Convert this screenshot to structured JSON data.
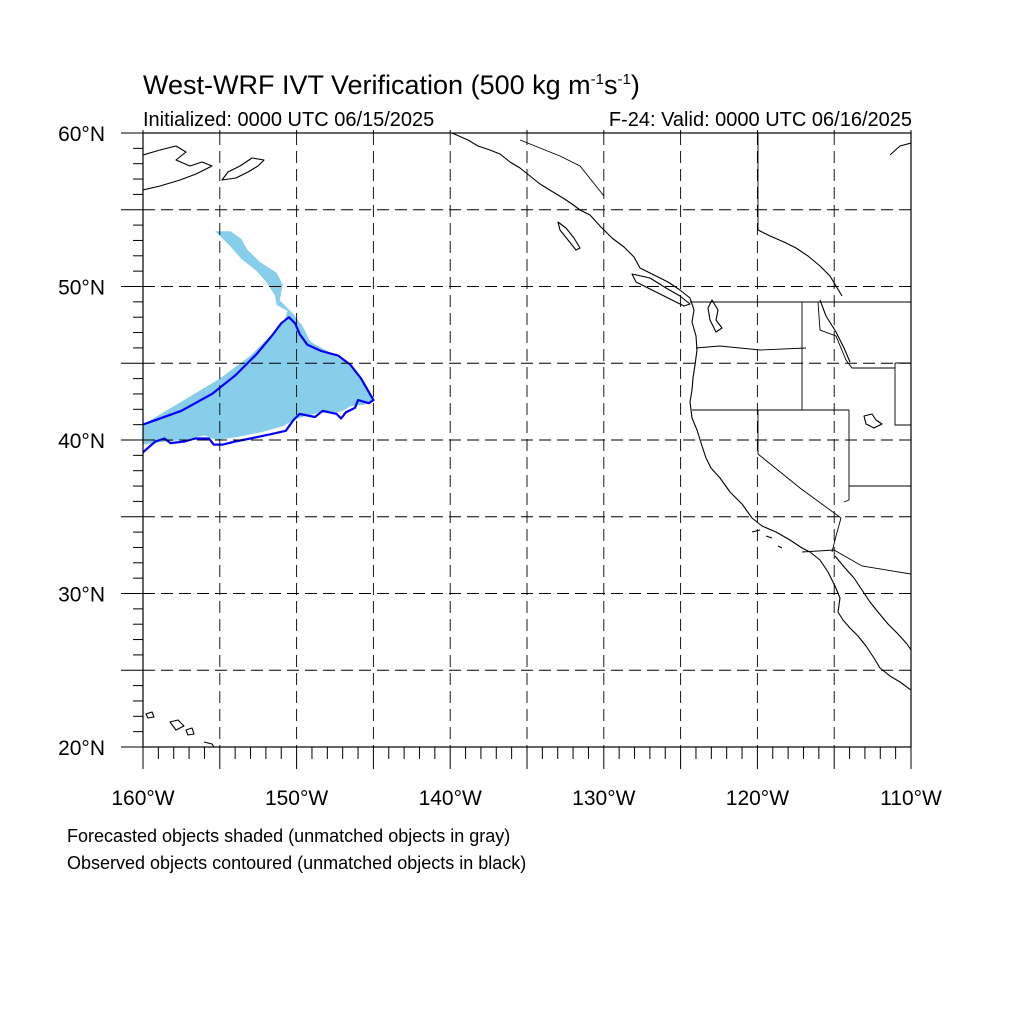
{
  "title": {
    "main": "West-WRF IVT Verification (500 kg m",
    "exp1": "-1",
    "mid": "s",
    "exp2": "-1",
    "close": ")"
  },
  "subtitle": {
    "left": "Initialized: 0000 UTC 06/15/2025",
    "right": "F-24: Valid: 0000 UTC 06/16/2025"
  },
  "map": {
    "projection": "cylindrical-equidistant",
    "lon_range": [
      -160,
      -110
    ],
    "lat_range": [
      20,
      60
    ],
    "grid": true,
    "grid_spacing_deg": 5,
    "lat_labels": [
      {
        "lat": 60,
        "text": "60°N"
      },
      {
        "lat": 50,
        "text": "50°N"
      },
      {
        "lat": 40,
        "text": "40°N"
      },
      {
        "lat": 30,
        "text": "30°N"
      },
      {
        "lat": 20,
        "text": "20°N"
      }
    ],
    "lon_labels": [
      {
        "lon": -160,
        "text": "160°W"
      },
      {
        "lon": -150,
        "text": "150°W"
      },
      {
        "lon": -140,
        "text": "140°W"
      },
      {
        "lon": -130,
        "text": "130°W"
      },
      {
        "lon": -120,
        "text": "120°W"
      },
      {
        "lon": -110,
        "text": "110°W"
      }
    ],
    "forecast_object": {
      "fill": "#87CEEB",
      "polygon": [
        [
          -160,
          41
        ],
        [
          -157.5,
          42.5
        ],
        [
          -155,
          44
        ],
        [
          -153,
          45.5
        ],
        [
          -151.5,
          47
        ],
        [
          -150.8,
          47.7
        ],
        [
          -150.6,
          48.4
        ],
        [
          -151.3,
          48.8
        ],
        [
          -151.4,
          49.4
        ],
        [
          -151.9,
          50.2
        ],
        [
          -152.6,
          51
        ],
        [
          -153.6,
          51.8
        ],
        [
          -154.3,
          52.6
        ],
        [
          -155,
          53.3
        ],
        [
          -155.3,
          53.6
        ],
        [
          -154.3,
          53.6
        ],
        [
          -153.6,
          53.1
        ],
        [
          -153.2,
          52.4
        ],
        [
          -152.4,
          51.6
        ],
        [
          -151.3,
          50.9
        ],
        [
          -150.9,
          50.1
        ],
        [
          -151.1,
          49.1
        ],
        [
          -150.2,
          48.2
        ],
        [
          -149.6,
          47.4
        ],
        [
          -149.1,
          46.4
        ],
        [
          -148,
          45.8
        ],
        [
          -146.7,
          45
        ],
        [
          -145.6,
          43.8
        ],
        [
          -144.9,
          42.6
        ],
        [
          -145.6,
          42.3
        ],
        [
          -146.5,
          42.2
        ],
        [
          -147,
          41.9
        ],
        [
          -147.6,
          41.7
        ],
        [
          -148.5,
          41.8
        ],
        [
          -149.2,
          41.6
        ],
        [
          -150,
          41.4
        ],
        [
          -150.9,
          40.9
        ],
        [
          -152.3,
          40.5
        ],
        [
          -153.8,
          40.2
        ],
        [
          -155.2,
          40
        ],
        [
          -156,
          40.3
        ],
        [
          -157.3,
          40
        ],
        [
          -158.5,
          39.9
        ],
        [
          -160,
          39.7
        ]
      ]
    },
    "observed_object": {
      "stroke": "#0000FF",
      "polygon": [
        [
          -160,
          41
        ],
        [
          -157.5,
          41.9
        ],
        [
          -155.5,
          43
        ],
        [
          -154,
          44.2
        ],
        [
          -152.6,
          45.6
        ],
        [
          -151.6,
          46.8
        ],
        [
          -151,
          47.6
        ],
        [
          -150.5,
          48
        ],
        [
          -150.1,
          47.6
        ],
        [
          -149.8,
          46.9
        ],
        [
          -149.3,
          46.2
        ],
        [
          -148.4,
          45.8
        ],
        [
          -147.3,
          45.5
        ],
        [
          -146.5,
          44.9
        ],
        [
          -145.8,
          44
        ],
        [
          -145,
          42.6
        ],
        [
          -145.3,
          42.4
        ],
        [
          -146,
          42.6
        ],
        [
          -146.2,
          42.1
        ],
        [
          -146.8,
          41.8
        ],
        [
          -147.1,
          41.4
        ],
        [
          -147.4,
          41.7
        ],
        [
          -148.3,
          41.9
        ],
        [
          -148.8,
          41.5
        ],
        [
          -149.8,
          41.7
        ],
        [
          -150.2,
          41.3
        ],
        [
          -150.7,
          40.6
        ],
        [
          -151.6,
          40.4
        ],
        [
          -153,
          40.1
        ],
        [
          -154,
          39.9
        ],
        [
          -154.8,
          39.7
        ],
        [
          -155.4,
          39.7
        ],
        [
          -155.7,
          40.1
        ],
        [
          -156.6,
          40.1
        ],
        [
          -157.3,
          39.9
        ],
        [
          -158.2,
          39.8
        ],
        [
          -158.6,
          40.1
        ],
        [
          -159.2,
          39.9
        ],
        [
          -160,
          39.2
        ]
      ]
    }
  },
  "footer": {
    "line1": "Forecasted objects shaded (unmatched objects in gray)",
    "line2": "Observed objects contoured (unmatched objects in black)"
  }
}
